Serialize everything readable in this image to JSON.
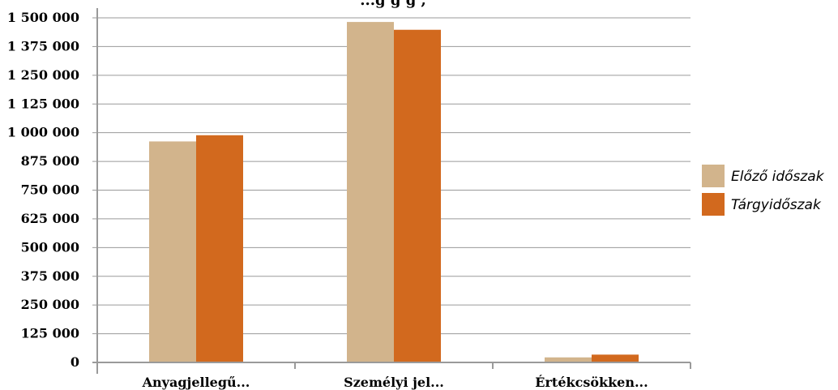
{
  "chart_data": {
    "type": "bar",
    "title": "...g     g        g     ,",
    "categories": [
      "Anyagjellegű...",
      "Személyi jel...",
      "Értékcsökken..."
    ],
    "series": [
      {
        "name": "Előző időszak",
        "values": [
          962000,
          1482000,
          22000
        ],
        "color": "#d2b48c"
      },
      {
        "name": "Tárgyidőszak",
        "values": [
          989000,
          1448000,
          34000
        ],
        "color": "#d2691e"
      }
    ],
    "ylim": [
      0,
      1500000
    ],
    "yticks": [
      0,
      125000,
      250000,
      375000,
      500000,
      625000,
      750000,
      875000,
      1000000,
      1125000,
      1250000,
      1375000,
      1500000
    ],
    "ytick_labels": [
      "0",
      "125 000",
      "250 000",
      "375 000",
      "500 000",
      "625 000",
      "750 000",
      "875 000",
      "1 000 000",
      "1 125 000",
      "1 250 000",
      "1 375 000",
      "1 500 000"
    ],
    "xlabel": "",
    "ylabel": "",
    "grid": true,
    "legend": "right"
  }
}
